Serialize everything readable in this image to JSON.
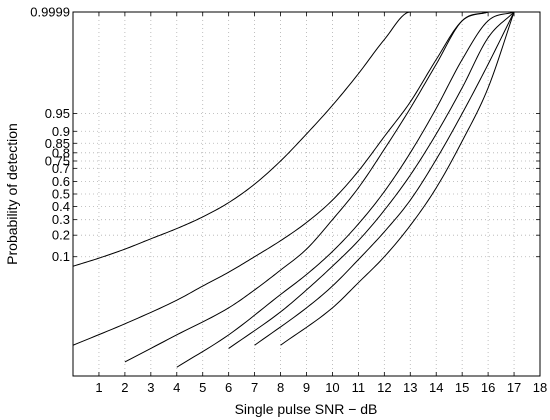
{
  "chart_data": {
    "type": "line",
    "title": "",
    "xlabel": "Single pulse SNR − dB",
    "ylabel": "Probability of detection",
    "xlim": [
      0,
      18
    ],
    "x_ticks": [
      1,
      2,
      3,
      4,
      5,
      6,
      7,
      8,
      9,
      10,
      11,
      12,
      13,
      14,
      15,
      16,
      17,
      18
    ],
    "x_tick_labels": [
      "1",
      "2",
      "3",
      "4",
      "5",
      "6",
      "7",
      "8",
      "9",
      "10",
      "11",
      "12",
      "13",
      "14",
      "15",
      "16",
      "17",
      "18"
    ],
    "y_scale": "normal-probability",
    "ylim": [
      0.0001,
      0.9999
    ],
    "y_ticks": [
      0.1,
      0.2,
      0.3,
      0.4,
      0.5,
      0.6,
      0.7,
      0.75,
      0.8,
      0.85,
      0.9,
      0.95,
      0.9999
    ],
    "y_tick_labels": [
      "0.1",
      "0.2",
      "0.3",
      "0.4",
      "0.5",
      "0.6",
      "0.7",
      "0.75",
      "0.8",
      "0.85",
      "0.9",
      "0.95",
      "0.9999"
    ],
    "grid": true,
    "line_color": "#000000",
    "series": [
      {
        "x": [
          0,
          1,
          2,
          3,
          4,
          5,
          6,
          7,
          8,
          9,
          10,
          11,
          12,
          13,
          14,
          15
        ],
        "y": [
          0.07,
          0.095,
          0.13,
          0.18,
          0.24,
          0.32,
          0.43,
          0.58,
          0.75,
          0.89,
          0.965,
          0.993,
          0.9992,
          0.9999,
          0.9999,
          0.9999
        ]
      },
      {
        "x": [
          0,
          2,
          4,
          5,
          6,
          7,
          8,
          9,
          10,
          11,
          12,
          13,
          14,
          15,
          16
        ],
        "y": [
          0.001,
          0.004,
          0.015,
          0.03,
          0.055,
          0.1,
          0.17,
          0.28,
          0.45,
          0.68,
          0.88,
          0.97,
          0.997,
          0.9998,
          0.9999
        ]
      },
      {
        "x": [
          2,
          4,
          6,
          7,
          8,
          9,
          10,
          11,
          12,
          13,
          14,
          15,
          16
        ],
        "y": [
          0.0003,
          0.002,
          0.01,
          0.025,
          0.06,
          0.13,
          0.3,
          0.55,
          0.82,
          0.96,
          0.996,
          0.9998,
          0.9999
        ]
      },
      {
        "x": [
          4,
          6,
          8,
          9,
          10,
          11,
          12,
          13,
          14,
          15,
          16,
          17
        ],
        "y": [
          0.0002,
          0.002,
          0.02,
          0.05,
          0.12,
          0.27,
          0.52,
          0.8,
          0.96,
          0.997,
          0.9998,
          0.9999
        ]
      },
      {
        "x": [
          6,
          8,
          9,
          10,
          11,
          12,
          13,
          14,
          15,
          16,
          17
        ],
        "y": [
          0.0008,
          0.008,
          0.025,
          0.07,
          0.17,
          0.37,
          0.65,
          0.89,
          0.985,
          0.9993,
          0.9999
        ]
      },
      {
        "x": [
          7,
          9,
          10,
          11,
          12,
          13,
          14,
          15,
          16,
          17
        ],
        "y": [
          0.001,
          0.01,
          0.03,
          0.09,
          0.22,
          0.45,
          0.76,
          0.95,
          0.996,
          0.9999
        ]
      },
      {
        "x": [
          8,
          10,
          11,
          12,
          13,
          14,
          15,
          16,
          17
        ],
        "y": [
          0.001,
          0.01,
          0.035,
          0.1,
          0.26,
          0.55,
          0.86,
          0.985,
          0.9999
        ]
      }
    ]
  }
}
